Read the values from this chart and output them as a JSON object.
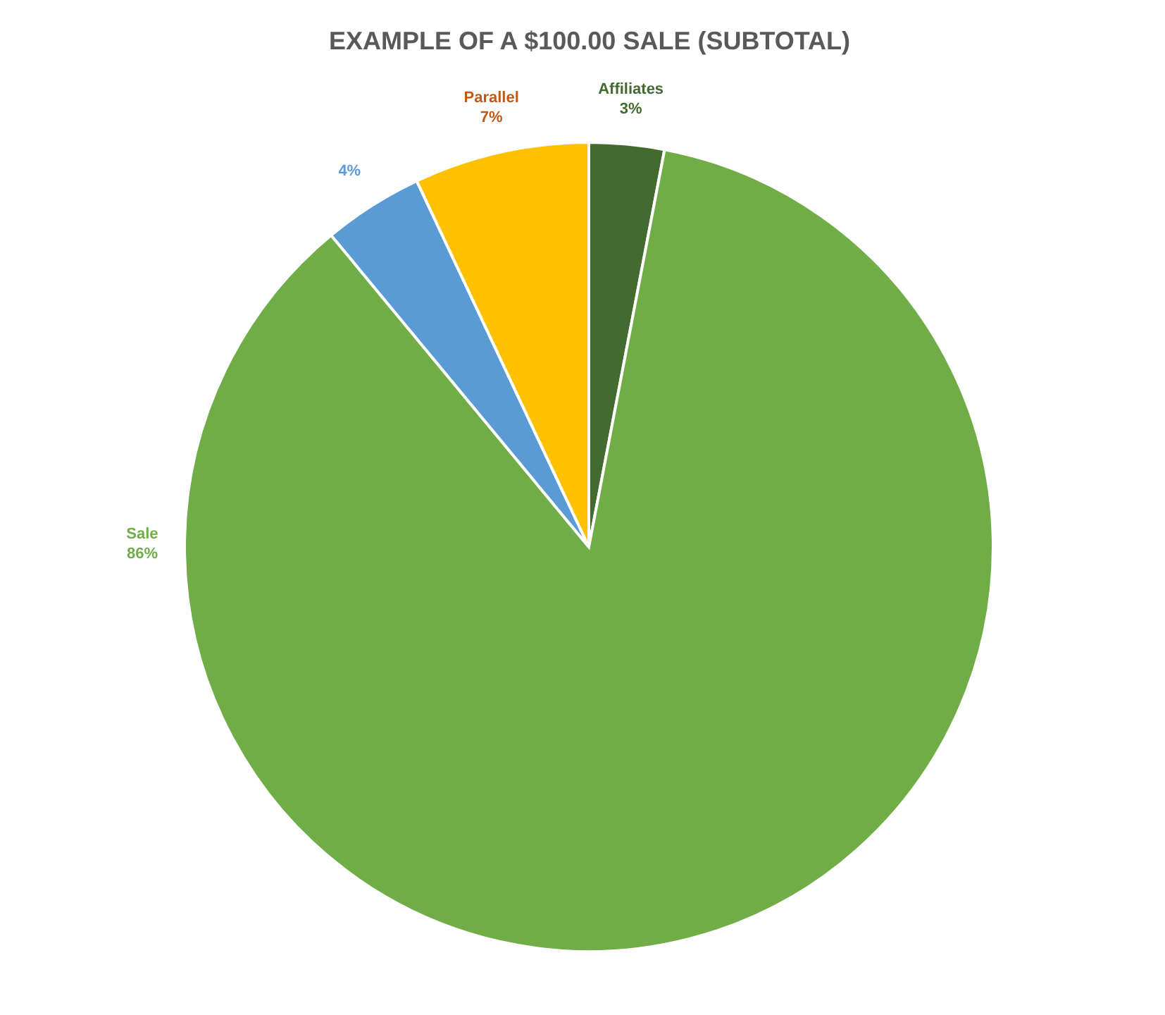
{
  "chart_data": {
    "type": "pie",
    "title": "EXAMPLE OF A $100.00 SALE (SUBTOTAL)",
    "categories": [
      "Affiliates",
      "Sale",
      null,
      "Parallel"
    ],
    "values": [
      3,
      86,
      4,
      7
    ],
    "colors": [
      "#436a2f",
      "#70ad47",
      "#5b9bd5",
      "#ffc000"
    ],
    "value_labels": [
      "3%",
      "86%",
      "4%",
      "7%"
    ]
  }
}
